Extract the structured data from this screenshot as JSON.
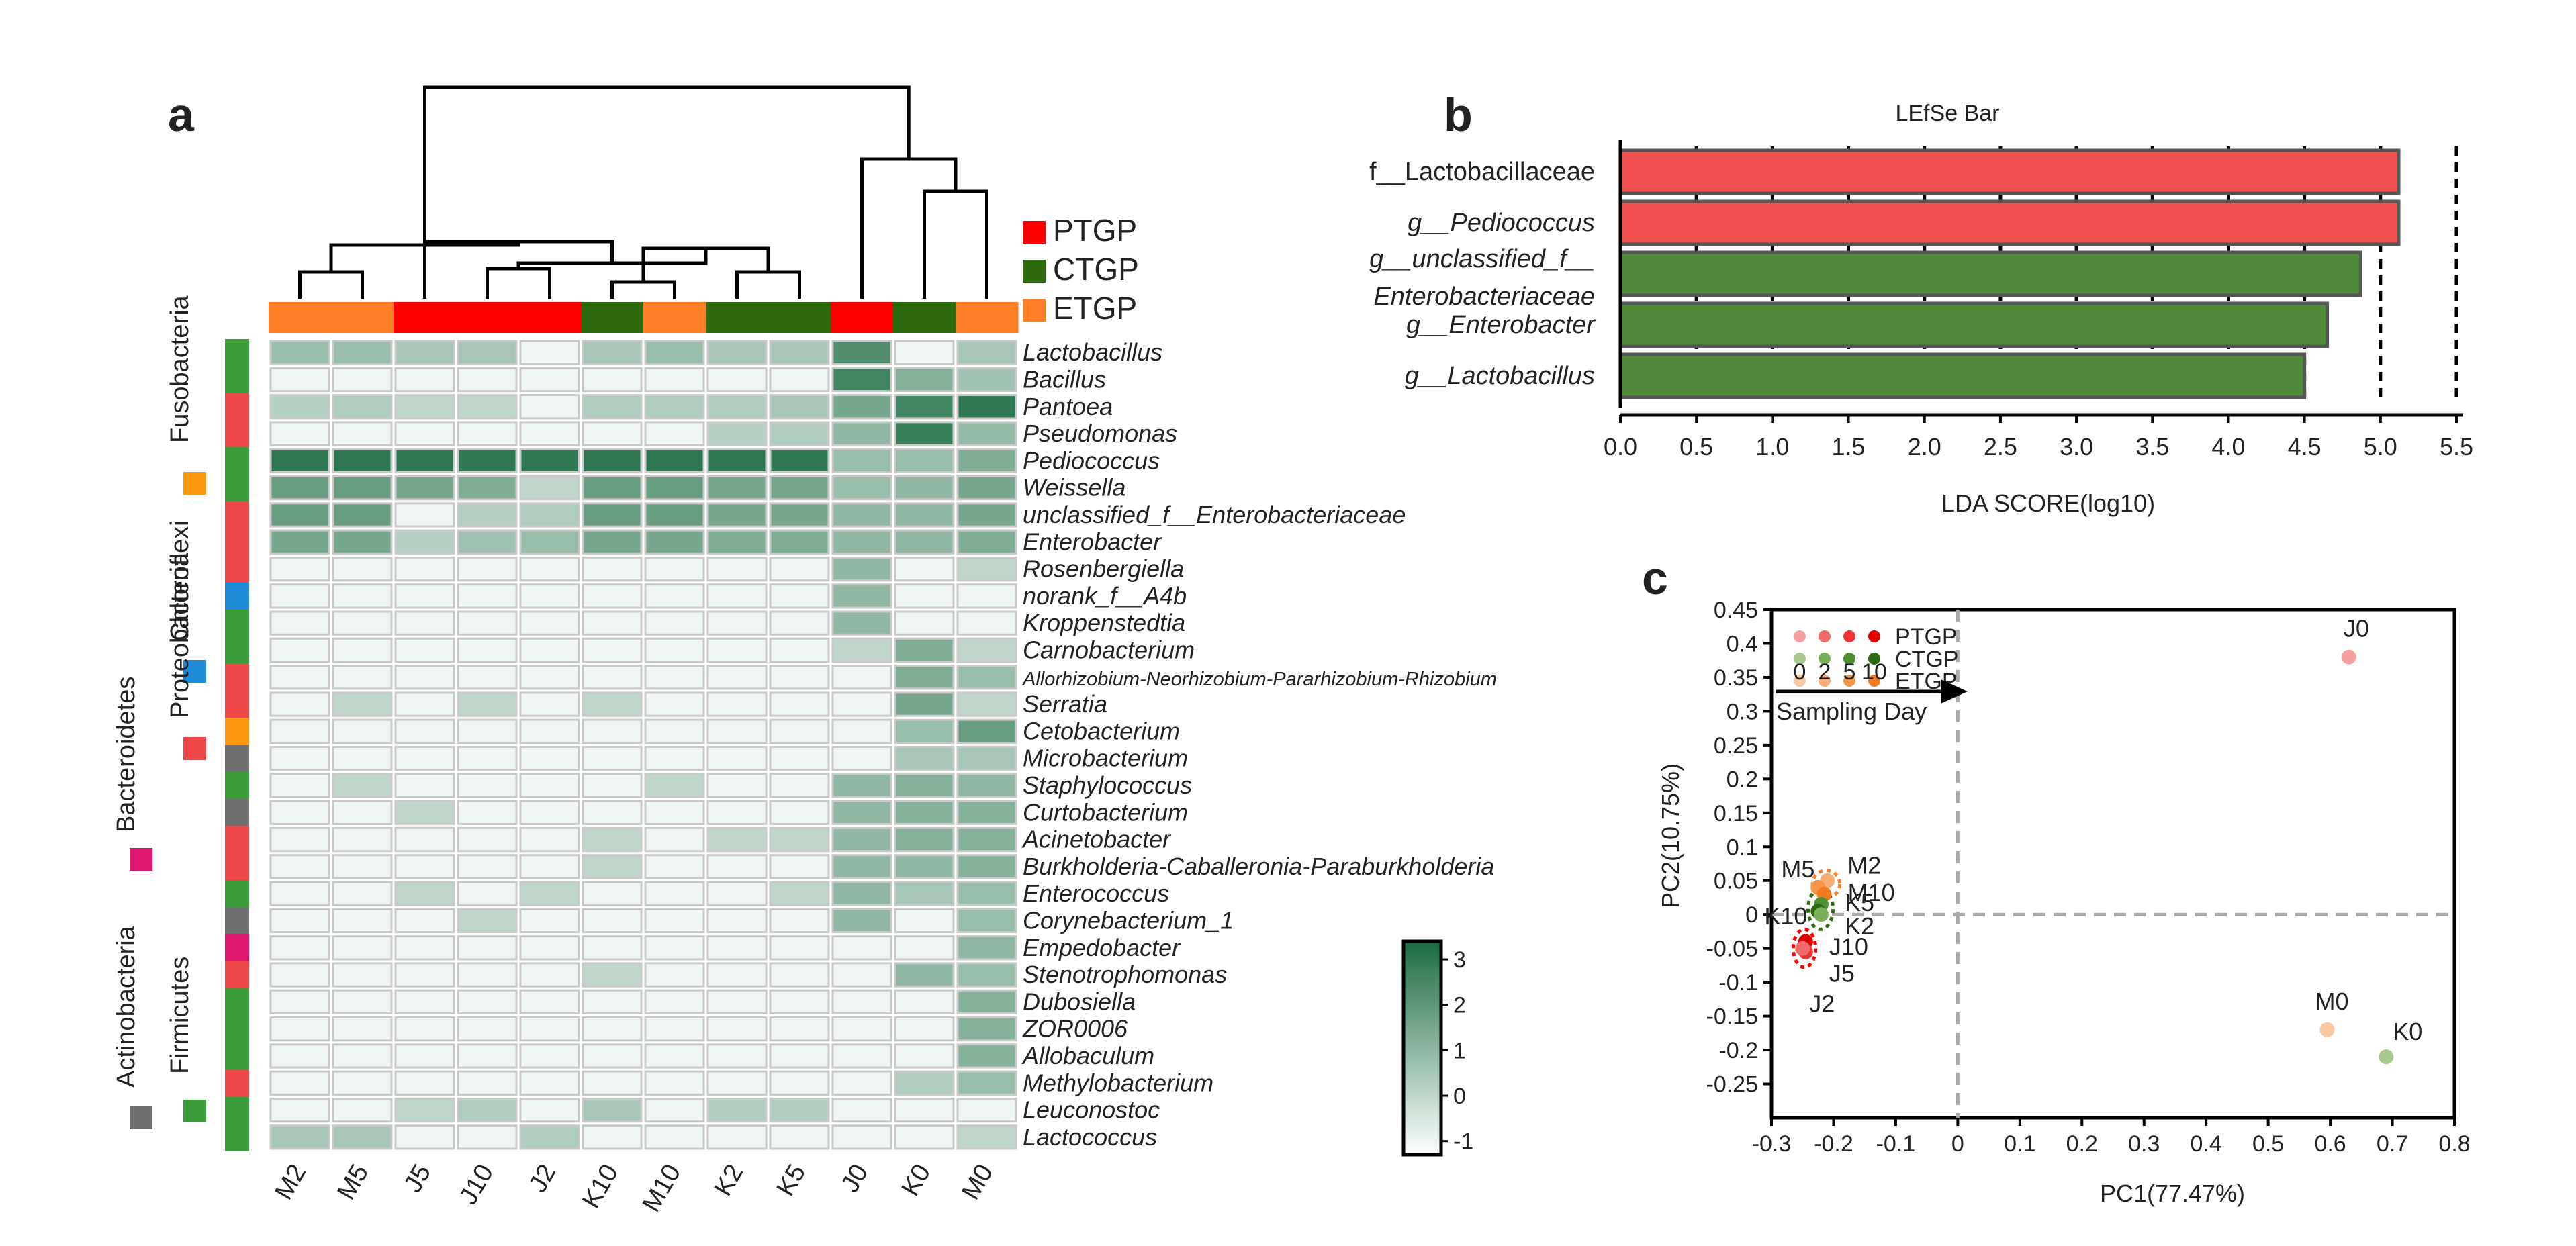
{
  "figure": {
    "panel_a_label": "a",
    "panel_b_label": "b",
    "panel_c_label": "c"
  },
  "colors": {
    "PTGP": "#ff0000",
    "CTGP": "#2e6b0e",
    "ETGP": "#ff7f27",
    "Firmicutes": "#3a9d3a",
    "Proteobacteria": "#f04848",
    "Chloroflexi": "#1f8ad6",
    "Fusobacteria": "#ff9a10",
    "Bacteroidetes": "#e0186f",
    "Actinobacteria": "#707070"
  },
  "chart_data": [
    {
      "type": "heatmap",
      "title": "",
      "columns": [
        "M2",
        "M5",
        "J5",
        "J10",
        "J2",
        "K10",
        "M10",
        "K2",
        "K5",
        "J0",
        "K0",
        "M0"
      ],
      "column_groups": [
        "ETGP",
        "ETGP",
        "PTGP",
        "PTGP",
        "PTGP",
        "CTGP",
        "ETGP",
        "CTGP",
        "CTGP",
        "PTGP",
        "CTGP",
        "ETGP"
      ],
      "group_legend": [
        "PTGP",
        "CTGP",
        "ETGP"
      ],
      "phylum_legend": [
        "Firmicutes",
        "Proteobacteria",
        "Chloroflexi",
        "Fusobacteria",
        "Bacteroidetes",
        "Actinobacteria"
      ],
      "rows": [
        "Lactobacillus",
        "Bacillus",
        "Pantoea",
        "Pseudomonas",
        "Pediococcus",
        "Weissella",
        "unclassified_f__Enterobacteriaceae",
        "Enterobacter",
        "Rosenbergiella",
        "norank_f__A4b",
        "Kroppenstedtia",
        "Carnobacterium",
        "Allorhizobium-Neorhizobium-Pararhizobium-Rhizobium",
        "Serratia",
        "Cetobacterium",
        "Microbacterium",
        "Staphylococcus",
        "Curtobacterium",
        "Acinetobacter",
        "Burkholderia-Caballeronia-Paraburkholderia",
        "Enterococcus",
        "Corynebacterium_1",
        "Empedobacter",
        "Stenotrophomonas",
        "Dubosiella",
        "ZOR0006",
        "Allobaculum",
        "Methylobacterium",
        "Leuconostoc",
        "Lactococcus"
      ],
      "row_phyla": [
        "Firmicutes",
        "Firmicutes",
        "Proteobacteria",
        "Proteobacteria",
        "Firmicutes",
        "Firmicutes",
        "Proteobacteria",
        "Proteobacteria",
        "Proteobacteria",
        "Chloroflexi",
        "Firmicutes",
        "Firmicutes",
        "Proteobacteria",
        "Proteobacteria",
        "Fusobacteria",
        "Actinobacteria",
        "Firmicutes",
        "Actinobacteria",
        "Proteobacteria",
        "Proteobacteria",
        "Firmicutes",
        "Actinobacteria",
        "Bacteroidetes",
        "Proteobacteria",
        "Firmicutes",
        "Firmicutes",
        "Firmicutes",
        "Proteobacteria",
        "Firmicutes",
        "Firmicutes"
      ],
      "values": [
        [
          0.8,
          0.8,
          0.5,
          0.5,
          -1,
          0.5,
          0.8,
          0.5,
          0.5,
          2.3,
          -1,
          0.5
        ],
        [
          -1,
          -1,
          -1,
          -1,
          -1,
          -1,
          -1,
          -1,
          -1,
          2.6,
          1.2,
          0.6
        ],
        [
          0.2,
          0.3,
          0,
          0,
          -1,
          0.3,
          0.3,
          0.3,
          0.5,
          1.5,
          2.6,
          3.0
        ],
        [
          -1,
          -1,
          -1,
          -1,
          -1,
          -1,
          -1,
          0.2,
          0.3,
          1.0,
          2.8,
          0.9
        ],
        [
          3.0,
          3.0,
          3.0,
          3.0,
          3.0,
          3.0,
          3.0,
          3.0,
          3.0,
          0.8,
          0.8,
          1.3
        ],
        [
          1.8,
          1.8,
          1.5,
          1.3,
          0,
          1.8,
          1.8,
          1.5,
          1.5,
          0.8,
          1.0,
          1.5
        ],
        [
          1.8,
          1.8,
          -1,
          0.2,
          0.3,
          1.8,
          1.8,
          1.5,
          1.5,
          1.0,
          1.0,
          1.5
        ],
        [
          1.5,
          1.5,
          0.2,
          0.6,
          0.8,
          1.5,
          1.5,
          1.3,
          1.3,
          1.0,
          1.0,
          1.3
        ],
        [
          -1,
          -1,
          -1,
          -1,
          -1,
          -1,
          -1,
          -1,
          -1,
          1.0,
          -1,
          0
        ],
        [
          -1,
          -1,
          -1,
          -1,
          -1,
          -1,
          -1,
          -1,
          -1,
          1.0,
          -1,
          -1
        ],
        [
          -1,
          -1,
          -1,
          -1,
          -1,
          -1,
          -1,
          -1,
          -1,
          1.0,
          -1,
          -1
        ],
        [
          -1,
          -1,
          -1,
          -1,
          -1,
          -1,
          -1,
          -1,
          -1,
          0,
          1.3,
          0
        ],
        [
          -1,
          -1,
          -1,
          -1,
          -1,
          -1,
          -1,
          -1,
          -1,
          -1,
          1.3,
          0.8
        ],
        [
          -1,
          0,
          -1,
          0,
          -1,
          0,
          -1,
          -1,
          -1,
          -1,
          1.5,
          0
        ],
        [
          -1,
          -1,
          -1,
          -1,
          -1,
          -1,
          -1,
          -1,
          -1,
          -1,
          0.8,
          1.8
        ],
        [
          -1,
          -1,
          -1,
          -1,
          -1,
          -1,
          -1,
          -1,
          -1,
          -1,
          0.5,
          0.5
        ],
        [
          -1,
          0,
          -1,
          -1,
          -1,
          -1,
          0,
          -1,
          -1,
          1.0,
          1.2,
          1.0
        ],
        [
          -1,
          -1,
          0,
          -1,
          -1,
          -1,
          -1,
          -1,
          -1,
          1.0,
          1.2,
          1.2
        ],
        [
          -1,
          -1,
          -1,
          -1,
          -1,
          0,
          -1,
          0,
          0,
          1.0,
          1.2,
          1.2
        ],
        [
          -1,
          -1,
          -1,
          -1,
          -1,
          0,
          -1,
          -1,
          -1,
          1.0,
          1.0,
          1.2
        ],
        [
          -1,
          -1,
          0,
          -1,
          0,
          -1,
          -1,
          -1,
          0,
          1.0,
          0.5,
          0.8
        ],
        [
          -1,
          -1,
          -1,
          0,
          -1,
          -1,
          -1,
          -1,
          -1,
          1.0,
          -1,
          0.8
        ],
        [
          -1,
          -1,
          -1,
          -1,
          -1,
          -1,
          -1,
          -1,
          -1,
          -1,
          -1,
          1.0
        ],
        [
          -1,
          -1,
          -1,
          -1,
          -1,
          0,
          -1,
          -1,
          -1,
          -1,
          1.0,
          0.8
        ],
        [
          -1,
          -1,
          -1,
          -1,
          -1,
          -1,
          -1,
          -1,
          -1,
          -1,
          -1,
          1.2
        ],
        [
          -1,
          -1,
          -1,
          -1,
          -1,
          -1,
          -1,
          -1,
          -1,
          -1,
          -1,
          1.2
        ],
        [
          -1,
          -1,
          -1,
          -1,
          -1,
          -1,
          -1,
          -1,
          -1,
          -1,
          -1,
          1.2
        ],
        [
          -1,
          -1,
          -1,
          -1,
          -1,
          -1,
          -1,
          -1,
          -1,
          -1,
          0.3,
          0.8
        ],
        [
          -1,
          -1,
          0,
          0.3,
          -1,
          0.5,
          -1,
          0.3,
          0.3,
          -1,
          -1,
          -1
        ],
        [
          0.5,
          0.5,
          -1,
          -1,
          0.3,
          -1,
          -1,
          -1,
          -1,
          -1,
          -1,
          0
        ]
      ],
      "colorbar_ticks": [
        3,
        2,
        1,
        0,
        -1
      ],
      "colorbar_range": [
        -1.3,
        3.4
      ],
      "colorscale": [
        "#ffffff",
        "#1a6b42"
      ]
    },
    {
      "type": "bar",
      "orientation": "horizontal",
      "title": "LEfSe Bar",
      "xlabel": "LDA SCORE(log10)",
      "categories": [
        "f__Lactobacillaceae",
        "g__Pediococcus",
        "g__unclassified_f__",
        "g__Enterobacter",
        "g__Lactobacillus"
      ],
      "category_label_lines": [
        [
          "f__Lactobacillaceae"
        ],
        [
          "g__Pediococcus"
        ],
        [
          "g__unclassified_f__",
          "Enterobacteriaceae"
        ],
        [
          "g__Enterobacter"
        ],
        [
          "g__Lactobacillus"
        ]
      ],
      "values": [
        5.12,
        5.12,
        4.87,
        4.65,
        4.5
      ],
      "enriched_in": [
        "PTGP",
        "PTGP",
        "CTGP",
        "CTGP",
        "CTGP"
      ],
      "bar_colors": {
        "PTGP": "#f05050",
        "CTGP": "#4f8a3a"
      },
      "xlim": [
        0,
        5.5
      ],
      "xticks": [
        0.0,
        0.5,
        1.0,
        1.5,
        2.0,
        2.5,
        3.0,
        3.5,
        4.0,
        4.5,
        5.0,
        5.5
      ],
      "xtick_labels": [
        "0.0",
        "0.5",
        "1.0",
        "1.5",
        "2.0",
        "2.5",
        "3.0",
        "3.5",
        "4.0",
        "4.5",
        "5.0",
        "5.5"
      ],
      "grid": "vertical dashed"
    },
    {
      "type": "scatter",
      "title": "",
      "xlabel": "PC1(77.47%)",
      "ylabel": "PC2(10.75%)",
      "xlim": [
        -0.3,
        0.8
      ],
      "ylim": [
        -0.3,
        0.45
      ],
      "xticks": [
        -0.3,
        -0.2,
        -0.1,
        0,
        0.1,
        0.2,
        0.3,
        0.4,
        0.5,
        0.6,
        0.7,
        0.8
      ],
      "xtick_labels": [
        "-0.3",
        "-0.2",
        "-0.1",
        "0",
        "0.1",
        "0.2",
        "0.3",
        "0.4",
        "0.5",
        "0.6",
        "0.7",
        "0.8"
      ],
      "yticks": [
        0.45,
        0.4,
        0.35,
        0.3,
        0.25,
        0.2,
        0.15,
        0.1,
        0.05,
        0,
        -0.05,
        -0.1,
        -0.15,
        -0.2,
        -0.25
      ],
      "ytick_labels": [
        "0.45",
        "0.4",
        "0.35",
        "0.3",
        "0.25",
        "0.2",
        "0.15",
        "0.1",
        "0.05",
        "0",
        "-0.05",
        "-0.1",
        "-0.15",
        "-0.2",
        "-0.25"
      ],
      "points": [
        {
          "label": "J0",
          "x": 0.63,
          "y": 0.38,
          "group": "PTGP",
          "day": 0
        },
        {
          "label": "M0",
          "x": 0.595,
          "y": -0.17,
          "group": "ETGP",
          "day": 0
        },
        {
          "label": "K0",
          "x": 0.69,
          "y": -0.21,
          "group": "CTGP",
          "day": 0
        },
        {
          "label": "M2",
          "x": -0.21,
          "y": 0.05,
          "group": "ETGP",
          "day": 2
        },
        {
          "label": "M5",
          "x": -0.225,
          "y": 0.04,
          "group": "ETGP",
          "day": 5
        },
        {
          "label": "M10",
          "x": -0.215,
          "y": 0.03,
          "group": "ETGP",
          "day": 10
        },
        {
          "label": "K5",
          "x": -0.22,
          "y": 0.015,
          "group": "CTGP",
          "day": 5
        },
        {
          "label": "K10",
          "x": -0.225,
          "y": 0.005,
          "group": "CTGP",
          "day": 10
        },
        {
          "label": "K2",
          "x": -0.22,
          "y": 0.0,
          "group": "CTGP",
          "day": 2
        },
        {
          "label": "J10",
          "x": -0.245,
          "y": -0.04,
          "group": "PTGP",
          "day": 10
        },
        {
          "label": "J5",
          "x": -0.245,
          "y": -0.055,
          "group": "PTGP",
          "day": 5
        },
        {
          "label": "J2",
          "x": -0.25,
          "y": -0.05,
          "group": "PTGP",
          "day": 2
        }
      ],
      "legend_groups": [
        "PTGP",
        "CTGP",
        "ETGP"
      ],
      "legend_days": [
        "0",
        "2",
        "5",
        "10"
      ],
      "legend_day_title": "Sampling Day",
      "day_colors": {
        "PTGP": [
          "#f7a0a0",
          "#f26a6a",
          "#ee3535",
          "#e00000"
        ],
        "CTGP": [
          "#a9c98f",
          "#7ab05c",
          "#4f9034",
          "#2a6a12"
        ],
        "ETGP": [
          "#f9c7a0",
          "#f7ad74",
          "#f49548",
          "#ef7d1f"
        ]
      },
      "reference_lines": {
        "x": 0,
        "y": 0
      }
    }
  ]
}
